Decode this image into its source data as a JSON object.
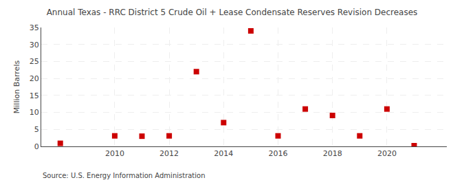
{
  "chart_data": {
    "type": "scatter",
    "title": "Annual Texas - RRC District 5 Crude Oil + Lease Condensate Reserves Revision Decreases",
    "ylabel": "Million Barrels",
    "annotation": "Source: U.S. Energy Information Administration",
    "x": [
      2008,
      2010,
      2011,
      2012,
      2013,
      2014,
      2015,
      2016,
      2017,
      2018,
      2019,
      2020,
      2021
    ],
    "values": [
      0.9,
      3.1,
      3.0,
      3.1,
      22.0,
      7.0,
      34.0,
      3.1,
      11.0,
      9.1,
      3.1,
      11.0,
      0.2
    ],
    "color": "#cc0000",
    "marker": "square",
    "xlim": [
      2007.3,
      2022.2
    ],
    "xticks": [
      2010,
      2012,
      2014,
      2016,
      2018,
      2020
    ],
    "ylim": [
      0,
      35
    ],
    "yticks": [
      0,
      5,
      10,
      15,
      20,
      25,
      30,
      35
    ],
    "grid": true
  }
}
